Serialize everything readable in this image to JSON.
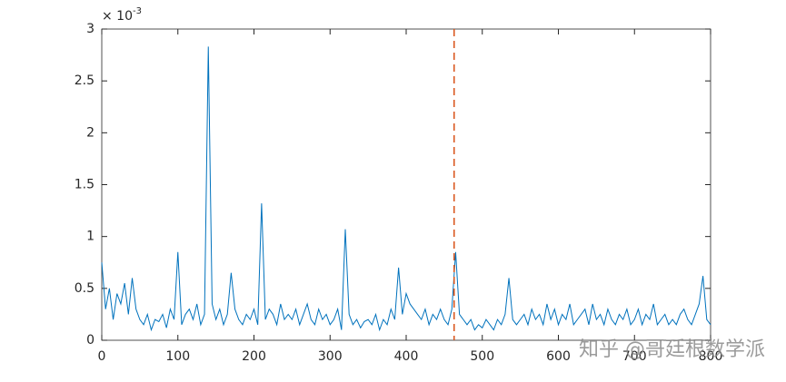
{
  "chart_data": {
    "type": "line",
    "y_multiplier_base": "× 10",
    "y_multiplier_exp": "-3",
    "x": [
      0,
      5,
      10,
      15,
      20,
      25,
      30,
      35,
      40,
      45,
      50,
      55,
      60,
      65,
      70,
      75,
      80,
      85,
      90,
      95,
      100,
      105,
      110,
      115,
      120,
      125,
      130,
      135,
      140,
      145,
      150,
      155,
      160,
      165,
      170,
      175,
      180,
      185,
      190,
      195,
      200,
      205,
      210,
      215,
      220,
      225,
      230,
      235,
      240,
      245,
      250,
      255,
      260,
      265,
      270,
      275,
      280,
      285,
      290,
      295,
      300,
      305,
      310,
      315,
      320,
      325,
      330,
      335,
      340,
      345,
      350,
      355,
      360,
      365,
      370,
      375,
      380,
      385,
      390,
      395,
      400,
      405,
      410,
      415,
      420,
      425,
      430,
      435,
      440,
      445,
      450,
      455,
      460,
      465,
      470,
      475,
      480,
      485,
      490,
      495,
      500,
      505,
      510,
      515,
      520,
      525,
      530,
      535,
      540,
      545,
      550,
      555,
      560,
      565,
      570,
      575,
      580,
      585,
      590,
      595,
      600,
      605,
      610,
      615,
      620,
      625,
      630,
      635,
      640,
      645,
      650,
      655,
      660,
      665,
      670,
      675,
      680,
      685,
      690,
      695,
      700,
      705,
      710,
      715,
      720,
      725,
      730,
      735,
      740,
      745,
      750,
      755,
      760,
      765,
      770,
      775,
      780,
      785,
      790,
      795,
      800
    ],
    "series": [
      {
        "color": "#0072bd",
        "values": [
          0.75,
          0.3,
          0.5,
          0.2,
          0.45,
          0.35,
          0.55,
          0.25,
          0.6,
          0.3,
          0.2,
          0.15,
          0.25,
          0.1,
          0.2,
          0.18,
          0.25,
          0.12,
          0.3,
          0.2,
          0.85,
          0.15,
          0.25,
          0.3,
          0.2,
          0.35,
          0.15,
          0.25,
          2.83,
          0.35,
          0.2,
          0.3,
          0.15,
          0.25,
          0.65,
          0.3,
          0.2,
          0.15,
          0.25,
          0.2,
          0.3,
          0.15,
          1.32,
          0.2,
          0.3,
          0.25,
          0.15,
          0.35,
          0.2,
          0.25,
          0.2,
          0.3,
          0.15,
          0.25,
          0.35,
          0.2,
          0.15,
          0.3,
          0.2,
          0.25,
          0.15,
          0.2,
          0.3,
          0.1,
          1.07,
          0.25,
          0.15,
          0.2,
          0.12,
          0.18,
          0.2,
          0.15,
          0.25,
          0.1,
          0.2,
          0.15,
          0.3,
          0.2,
          0.7,
          0.25,
          0.45,
          0.35,
          0.3,
          0.25,
          0.2,
          0.3,
          0.15,
          0.25,
          0.2,
          0.3,
          0.2,
          0.15,
          0.3,
          0.85,
          0.25,
          0.2,
          0.15,
          0.2,
          0.1,
          0.15,
          0.12,
          0.2,
          0.15,
          0.1,
          0.2,
          0.15,
          0.25,
          0.6,
          0.2,
          0.15,
          0.2,
          0.25,
          0.15,
          0.3,
          0.2,
          0.25,
          0.15,
          0.35,
          0.2,
          0.3,
          0.15,
          0.25,
          0.2,
          0.35,
          0.15,
          0.2,
          0.25,
          0.3,
          0.15,
          0.35,
          0.2,
          0.25,
          0.15,
          0.3,
          0.2,
          0.15,
          0.25,
          0.2,
          0.3,
          0.15,
          0.2,
          0.3,
          0.15,
          0.25,
          0.2,
          0.35,
          0.15,
          0.2,
          0.25,
          0.15,
          0.2,
          0.15,
          0.25,
          0.3,
          0.2,
          0.15,
          0.25,
          0.35,
          0.62,
          0.2,
          0.15
        ]
      }
    ],
    "vline": {
      "x": 463,
      "color": "#d95319"
    },
    "xlim": [
      0,
      800
    ],
    "xticks": [
      0,
      100,
      200,
      300,
      400,
      500,
      600,
      700,
      800
    ],
    "ylim": [
      0,
      3
    ],
    "yticks": [
      0,
      0.5,
      1,
      1.5,
      2,
      2.5,
      3
    ],
    "watermark": "知乎 @哥廷根数学派"
  }
}
